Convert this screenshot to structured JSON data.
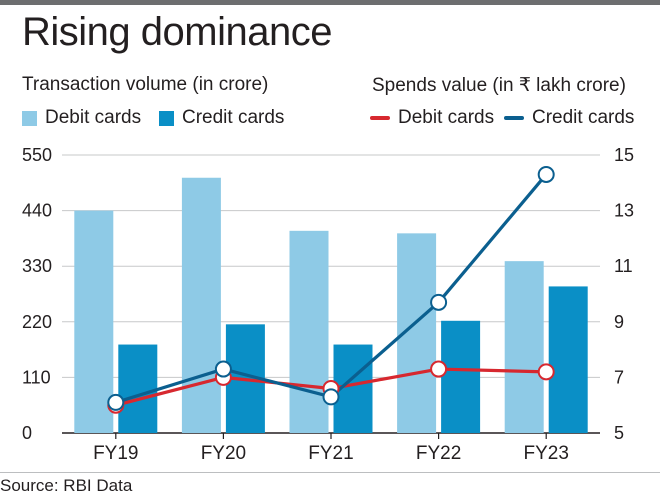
{
  "title": "Rising dominance",
  "source": "Source: RBI Data",
  "chart_data": {
    "type": "bar",
    "categories": [
      "FY19",
      "FY20",
      "FY21",
      "FY22",
      "FY23"
    ],
    "left_axis": {
      "label": "Transaction volume (in crore)",
      "ticks": [
        "550",
        "440",
        "330",
        "220",
        "110",
        "0"
      ],
      "range": [
        0,
        550
      ]
    },
    "right_axis": {
      "label": "Spends value (in ₹ lakh crore)",
      "ticks": [
        "15",
        "13",
        "11",
        "9",
        "7",
        "5"
      ],
      "range": [
        5,
        15
      ]
    },
    "bar_series": [
      {
        "name": "Debit cards",
        "values": [
          440,
          505,
          400,
          395,
          340
        ],
        "color": "#8ecae6"
      },
      {
        "name": "Credit cards",
        "values": [
          175,
          215,
          175,
          222,
          290
        ],
        "color": "#0a8fc6"
      }
    ],
    "line_series": [
      {
        "name": "Debit cards",
        "values": [
          6.0,
          7.0,
          6.6,
          7.3,
          7.2
        ],
        "color": "#d7282f"
      },
      {
        "name": "Credit cards",
        "values": [
          6.1,
          7.3,
          6.3,
          9.7,
          14.3
        ],
        "color": "#0b5f8f"
      }
    ],
    "grid": "horizontal",
    "legend": "top"
  }
}
